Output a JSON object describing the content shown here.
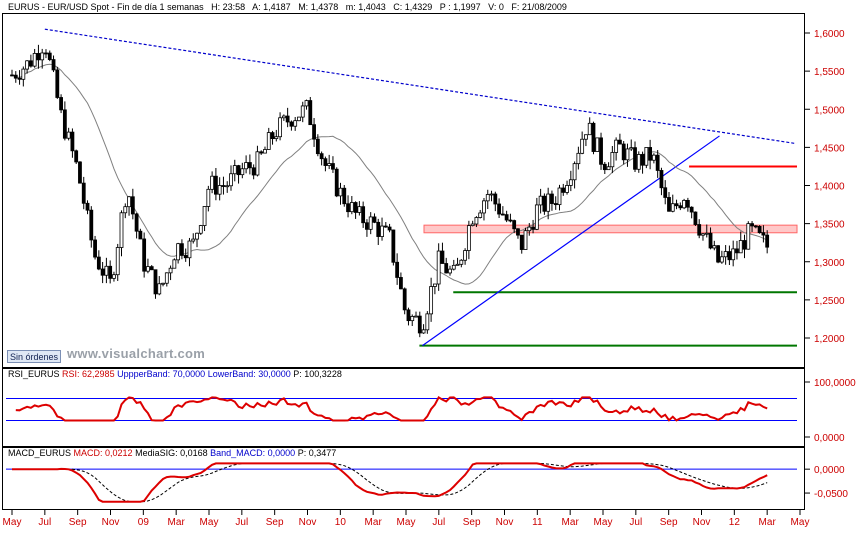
{
  "header": {
    "symbol": "EURUS",
    "description": "EUR/USD Spot - Fin de día 1 semanas",
    "H": "23:58",
    "A": "1,4187",
    "M": "1,4378",
    "m": "1,4043",
    "C": "1,4329",
    "P": "1,1997",
    "V": "0",
    "F": "21/08/2009"
  },
  "price_axis_ticks": [
    "1,6000",
    "1,5500",
    "1,5000",
    "1,4500",
    "1,4000",
    "1,3500",
    "1,3000",
    "1,2500",
    "1,2000"
  ],
  "sin_ordenes": "Sin órdenes",
  "watermark": "www.visualchart.com",
  "rsi_header": {
    "name": "RSI_EURUS",
    "rsi": "RSI: 62,2985",
    "upper": "UppperBand: 70,0000",
    "lower": "LowerBand: 30,0000",
    "p": "P: 100,3228"
  },
  "rsi_axis_ticks": [
    "100,0000",
    "0,0000"
  ],
  "macd_header": {
    "name": "MACD_EURUS",
    "macd": "MACD: 0,0212",
    "signal": "MediaSIG: 0,0168",
    "band": "Band_MACD: 0,0000",
    "p": "P: 0,3477"
  },
  "macd_axis_ticks": [
    "0,0000",
    "-0,0500"
  ],
  "time_axis": [
    "May",
    "Jul",
    "Sep",
    "Nov",
    "09",
    "Mar",
    "May",
    "Jul",
    "Sep",
    "Nov",
    "10",
    "Mar",
    "May",
    "Jul",
    "Sep",
    "Nov",
    "11",
    "Mar",
    "May",
    "Jul",
    "Sep",
    "Nov",
    "12",
    "Mar",
    "May"
  ],
  "colors": {
    "candle_up": "#ffffff",
    "candle_down": "#000000",
    "moving_average": "#808080",
    "trendline_dotted": "#0000cc",
    "trendline_up": "#0000ff",
    "resistance_red": "#ff0000",
    "support_green": "#007700",
    "rsi_line": "#dd0000",
    "band_blue": "#0000ff",
    "macd_line": "#dd0000",
    "axis_red": "#cc0000"
  },
  "chart_data": [
    {
      "type": "candlestick",
      "title": "EURUS - EUR/USD Spot - Fin de día 1 semanas",
      "y_range": [
        1.18,
        1.63
      ],
      "y_ticks": [
        1.2,
        1.25,
        1.3,
        1.35,
        1.4,
        1.45,
        1.5,
        1.55,
        1.6
      ],
      "close_path": [
        [
          "May 08",
          1.545
        ],
        [
          "Jun 08",
          1.56
        ],
        [
          "Jul 08",
          1.59
        ],
        [
          "Aug 08",
          1.49
        ],
        [
          "Sep 08",
          1.42
        ],
        [
          "Oct 08",
          1.31
        ],
        [
          "Nov 08",
          1.27
        ],
        [
          "Dec 08",
          1.4
        ],
        [
          "Jan 09",
          1.3
        ],
        [
          "Feb 09",
          1.26
        ],
        [
          "Mar 09",
          1.32
        ],
        [
          "Apr 09",
          1.32
        ],
        [
          "May 09",
          1.4
        ],
        [
          "Jun 09",
          1.4
        ],
        [
          "Jul 09",
          1.42
        ],
        [
          "Aug 09",
          1.43
        ],
        [
          "Sep 09",
          1.47
        ],
        [
          "Oct 09",
          1.49
        ],
        [
          "Nov 09",
          1.5
        ],
        [
          "Dec 09",
          1.43
        ],
        [
          "Jan 10",
          1.39
        ],
        [
          "Feb 10",
          1.36
        ],
        [
          "Mar 10",
          1.35
        ],
        [
          "Apr 10",
          1.33
        ],
        [
          "May 10",
          1.23
        ],
        [
          "Jun 10",
          1.22
        ],
        [
          "Jul 10",
          1.3
        ],
        [
          "Aug 10",
          1.28
        ],
        [
          "Sep 10",
          1.36
        ],
        [
          "Oct 10",
          1.39
        ],
        [
          "Nov 10",
          1.36
        ],
        [
          "Dec 10",
          1.32
        ],
        [
          "Jan 11",
          1.37
        ],
        [
          "Feb 11",
          1.38
        ],
        [
          "Mar 11",
          1.42
        ],
        [
          "Apr 11",
          1.48
        ],
        [
          "May 11",
          1.43
        ],
        [
          "Jun 11",
          1.45
        ],
        [
          "Jul 11",
          1.43
        ],
        [
          "Aug 11",
          1.44
        ],
        [
          "Sep 11",
          1.36
        ],
        [
          "Oct 11",
          1.39
        ],
        [
          "Nov 11",
          1.34
        ],
        [
          "Dec 11",
          1.3
        ],
        [
          "Jan 12",
          1.31
        ],
        [
          "Feb 12",
          1.34
        ],
        [
          "Mar 12",
          1.32
        ]
      ],
      "overlays": {
        "resistance_red": 1.425,
        "shaded_band": [
          1.338,
          1.348
        ],
        "support_green_upper": 1.26,
        "support_green_lower": 1.19,
        "dotted_downtrend": [
          [
            "Jul 08",
            1.605
          ],
          [
            "May 12",
            1.455
          ]
        ],
        "uptrend": [
          [
            "Jun 10",
            1.19
          ],
          [
            "Nov 11",
            1.465
          ]
        ]
      }
    },
    {
      "type": "line",
      "title": "RSI_EURUS",
      "y_range": [
        0,
        100
      ],
      "upper_band": 70,
      "lower_band": 30,
      "last_value": 62.2985
    },
    {
      "type": "line",
      "title": "MACD_EURUS",
      "y_range": [
        -0.075,
        0.015
      ],
      "band": 0,
      "last_macd": 0.0212,
      "last_signal": 0.0168
    }
  ]
}
